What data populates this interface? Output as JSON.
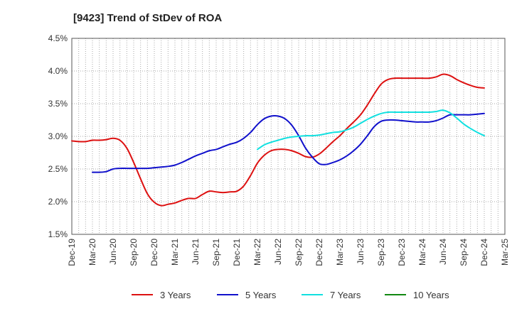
{
  "chart_data": {
    "type": "line",
    "title": "[9423]  Trend of StDev of ROA",
    "xlabel": "",
    "ylabel": "",
    "ylim": [
      1.5,
      4.5
    ],
    "yticks": [
      1.5,
      2.0,
      2.5,
      3.0,
      3.5,
      4.0,
      4.5
    ],
    "ytick_labels": [
      "1.5%",
      "2.0%",
      "2.5%",
      "3.0%",
      "3.5%",
      "4.0%",
      "4.5%"
    ],
    "xtick_labels": [
      "Dec-19",
      "Mar-20",
      "Jun-20",
      "Sep-20",
      "Dec-20",
      "Mar-21",
      "Jun-21",
      "Sep-21",
      "Dec-21",
      "Mar-22",
      "Jun-22",
      "Sep-22",
      "Dec-22",
      "Mar-23",
      "Jun-23",
      "Sep-23",
      "Dec-23",
      "Mar-24",
      "Jun-24",
      "Sep-24",
      "Dec-24",
      "Mar-25"
    ],
    "grid": true,
    "legend_position": "bottom",
    "series": [
      {
        "name": "3 Years",
        "color": "#dd1111",
        "points": [
          [
            "Dec-19",
            2.93
          ],
          [
            "Jan-20",
            2.92
          ],
          [
            "Feb-20",
            2.92
          ],
          [
            "Mar-20",
            2.94
          ],
          [
            "Apr-20",
            2.94
          ],
          [
            "May-20",
            2.95
          ],
          [
            "Jun-20",
            2.97
          ],
          [
            "Jul-20",
            2.94
          ],
          [
            "Aug-20",
            2.82
          ],
          [
            "Sep-20",
            2.6
          ],
          [
            "Oct-20",
            2.35
          ],
          [
            "Nov-20",
            2.12
          ],
          [
            "Dec-20",
            1.99
          ],
          [
            "Jan-21",
            1.94
          ],
          [
            "Feb-21",
            1.96
          ],
          [
            "Mar-21",
            1.98
          ],
          [
            "Apr-21",
            2.02
          ],
          [
            "May-21",
            2.05
          ],
          [
            "Jun-21",
            2.05
          ],
          [
            "Jul-21",
            2.11
          ],
          [
            "Aug-21",
            2.16
          ],
          [
            "Sep-21",
            2.15
          ],
          [
            "Oct-21",
            2.14
          ],
          [
            "Nov-21",
            2.15
          ],
          [
            "Dec-21",
            2.16
          ],
          [
            "Jan-22",
            2.24
          ],
          [
            "Feb-22",
            2.4
          ],
          [
            "Mar-22",
            2.59
          ],
          [
            "Apr-22",
            2.71
          ],
          [
            "May-22",
            2.78
          ],
          [
            "Jun-22",
            2.8
          ],
          [
            "Jul-22",
            2.8
          ],
          [
            "Aug-22",
            2.78
          ],
          [
            "Sep-22",
            2.74
          ],
          [
            "Oct-22",
            2.69
          ],
          [
            "Nov-22",
            2.68
          ],
          [
            "Dec-22",
            2.73
          ],
          [
            "Jan-23",
            2.82
          ],
          [
            "Feb-23",
            2.92
          ],
          [
            "Mar-23",
            3.01
          ],
          [
            "Apr-23",
            3.12
          ],
          [
            "May-23",
            3.22
          ],
          [
            "Jun-23",
            3.33
          ],
          [
            "Jul-23",
            3.48
          ],
          [
            "Aug-23",
            3.65
          ],
          [
            "Sep-23",
            3.8
          ],
          [
            "Oct-23",
            3.87
          ],
          [
            "Nov-23",
            3.89
          ],
          [
            "Dec-23",
            3.89
          ],
          [
            "Jan-24",
            3.89
          ],
          [
            "Feb-24",
            3.89
          ],
          [
            "Mar-24",
            3.89
          ],
          [
            "Apr-24",
            3.89
          ],
          [
            "May-24",
            3.91
          ],
          [
            "Jun-24",
            3.95
          ],
          [
            "Jul-24",
            3.93
          ],
          [
            "Aug-24",
            3.87
          ],
          [
            "Sep-24",
            3.82
          ],
          [
            "Oct-24",
            3.78
          ],
          [
            "Nov-24",
            3.75
          ],
          [
            "Dec-24",
            3.74
          ]
        ]
      },
      {
        "name": "5 Years",
        "color": "#1111cc",
        "points": [
          [
            "Mar-20",
            2.45
          ],
          [
            "Apr-20",
            2.45
          ],
          [
            "May-20",
            2.46
          ],
          [
            "Jun-20",
            2.5
          ],
          [
            "Jul-20",
            2.51
          ],
          [
            "Aug-20",
            2.51
          ],
          [
            "Sep-20",
            2.51
          ],
          [
            "Oct-20",
            2.51
          ],
          [
            "Nov-20",
            2.51
          ],
          [
            "Dec-20",
            2.52
          ],
          [
            "Jan-21",
            2.53
          ],
          [
            "Feb-21",
            2.54
          ],
          [
            "Mar-21",
            2.56
          ],
          [
            "Apr-21",
            2.6
          ],
          [
            "May-21",
            2.65
          ],
          [
            "Jun-21",
            2.7
          ],
          [
            "Jul-21",
            2.74
          ],
          [
            "Aug-21",
            2.78
          ],
          [
            "Sep-21",
            2.8
          ],
          [
            "Oct-21",
            2.84
          ],
          [
            "Nov-21",
            2.88
          ],
          [
            "Dec-21",
            2.91
          ],
          [
            "Jan-22",
            2.97
          ],
          [
            "Feb-22",
            3.06
          ],
          [
            "Mar-22",
            3.18
          ],
          [
            "Apr-22",
            3.27
          ],
          [
            "May-22",
            3.31
          ],
          [
            "Jun-22",
            3.31
          ],
          [
            "Jul-22",
            3.27
          ],
          [
            "Aug-22",
            3.17
          ],
          [
            "Sep-22",
            3.01
          ],
          [
            "Oct-22",
            2.82
          ],
          [
            "Nov-22",
            2.68
          ],
          [
            "Dec-22",
            2.58
          ],
          [
            "Jan-23",
            2.57
          ],
          [
            "Feb-23",
            2.6
          ],
          [
            "Mar-23",
            2.64
          ],
          [
            "Apr-23",
            2.7
          ],
          [
            "May-23",
            2.78
          ],
          [
            "Jun-23",
            2.88
          ],
          [
            "Jul-23",
            3.01
          ],
          [
            "Aug-23",
            3.15
          ],
          [
            "Sep-23",
            3.23
          ],
          [
            "Oct-23",
            3.25
          ],
          [
            "Nov-23",
            3.25
          ],
          [
            "Dec-23",
            3.24
          ],
          [
            "Jan-24",
            3.23
          ],
          [
            "Feb-24",
            3.22
          ],
          [
            "Mar-24",
            3.22
          ],
          [
            "Apr-24",
            3.22
          ],
          [
            "May-24",
            3.24
          ],
          [
            "Jun-24",
            3.28
          ],
          [
            "Jul-24",
            3.33
          ],
          [
            "Aug-24",
            3.33
          ],
          [
            "Sep-24",
            3.33
          ],
          [
            "Oct-24",
            3.33
          ],
          [
            "Nov-24",
            3.34
          ],
          [
            "Dec-24",
            3.35
          ]
        ]
      },
      {
        "name": "7 Years",
        "color": "#11e0e0",
        "points": [
          [
            "Mar-22",
            2.8
          ],
          [
            "Apr-22",
            2.87
          ],
          [
            "May-22",
            2.91
          ],
          [
            "Jun-22",
            2.94
          ],
          [
            "Jul-22",
            2.97
          ],
          [
            "Aug-22",
            2.99
          ],
          [
            "Sep-22",
            3.0
          ],
          [
            "Oct-22",
            3.01
          ],
          [
            "Nov-22",
            3.01
          ],
          [
            "Dec-22",
            3.02
          ],
          [
            "Jan-23",
            3.04
          ],
          [
            "Feb-23",
            3.06
          ],
          [
            "Mar-23",
            3.07
          ],
          [
            "Apr-23",
            3.1
          ],
          [
            "May-23",
            3.14
          ],
          [
            "Jun-23",
            3.2
          ],
          [
            "Jul-23",
            3.26
          ],
          [
            "Aug-23",
            3.31
          ],
          [
            "Sep-23",
            3.35
          ],
          [
            "Oct-23",
            3.37
          ],
          [
            "Nov-23",
            3.37
          ],
          [
            "Dec-23",
            3.37
          ],
          [
            "Jan-24",
            3.37
          ],
          [
            "Feb-24",
            3.37
          ],
          [
            "Mar-24",
            3.37
          ],
          [
            "Apr-24",
            3.37
          ],
          [
            "May-24",
            3.38
          ],
          [
            "Jun-24",
            3.4
          ],
          [
            "Jul-24",
            3.36
          ],
          [
            "Aug-24",
            3.28
          ],
          [
            "Sep-24",
            3.19
          ],
          [
            "Oct-24",
            3.12
          ],
          [
            "Nov-24",
            3.06
          ],
          [
            "Dec-24",
            3.01
          ]
        ]
      },
      {
        "name": "10 Years",
        "color": "#118811",
        "points": []
      }
    ]
  }
}
